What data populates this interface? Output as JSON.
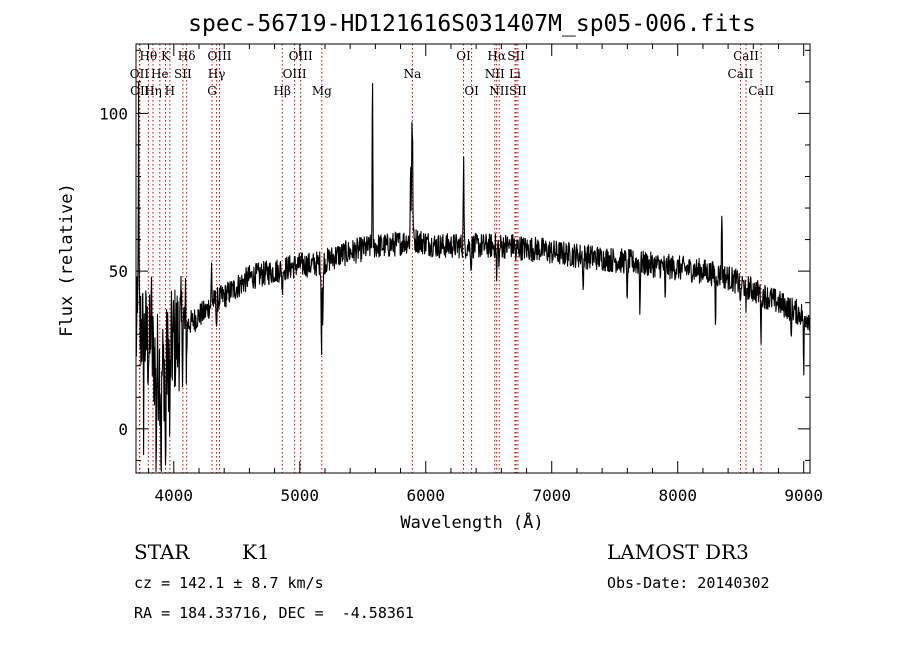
{
  "chart_data": {
    "type": "line",
    "title": "spec-56719-HD121616S031407M_sp05-006.fits",
    "xlabel": "Wavelength (Å)",
    "ylabel": "Flux (relative)",
    "xlim": [
      3700,
      9050
    ],
    "ylim": [
      -14,
      122
    ],
    "xticks": [
      4000,
      5000,
      6000,
      7000,
      8000,
      9000
    ],
    "yticks": [
      0,
      50,
      100
    ],
    "line_color": "#000000",
    "marker_color": "#d40000",
    "continuum": [
      [
        3700,
        30
      ],
      [
        3750,
        32
      ],
      [
        3800,
        26
      ],
      [
        3850,
        22
      ],
      [
        3900,
        18
      ],
      [
        3950,
        22
      ],
      [
        4000,
        28
      ],
      [
        4050,
        30
      ],
      [
        4100,
        33
      ],
      [
        4150,
        34
      ],
      [
        4200,
        36
      ],
      [
        4250,
        37
      ],
      [
        4300,
        40
      ],
      [
        4400,
        42
      ],
      [
        4500,
        45
      ],
      [
        4600,
        48
      ],
      [
        4700,
        49
      ],
      [
        4800,
        50
      ],
      [
        4900,
        51
      ],
      [
        5000,
        52
      ],
      [
        5100,
        52
      ],
      [
        5200,
        53
      ],
      [
        5300,
        55
      ],
      [
        5400,
        56
      ],
      [
        5500,
        57
      ],
      [
        5600,
        58
      ],
      [
        5700,
        58
      ],
      [
        5800,
        59
      ],
      [
        5900,
        60
      ],
      [
        6000,
        59
      ],
      [
        6100,
        58
      ],
      [
        6200,
        58
      ],
      [
        6300,
        58
      ],
      [
        6400,
        58
      ],
      [
        6500,
        58
      ],
      [
        6600,
        58
      ],
      [
        6700,
        58
      ],
      [
        6800,
        57
      ],
      [
        6900,
        57
      ],
      [
        7000,
        56
      ],
      [
        7200,
        55
      ],
      [
        7400,
        54
      ],
      [
        7600,
        53
      ],
      [
        7800,
        52
      ],
      [
        8000,
        51
      ],
      [
        8200,
        50
      ],
      [
        8400,
        48
      ],
      [
        8500,
        46
      ],
      [
        8600,
        44
      ],
      [
        8700,
        42
      ],
      [
        8800,
        40
      ],
      [
        8900,
        38
      ],
      [
        9000,
        36
      ],
      [
        9050,
        35
      ]
    ],
    "features": [
      {
        "x": 3720,
        "dy": 70
      },
      {
        "x": 3760,
        "dy": -25
      },
      {
        "x": 3820,
        "dy": 20
      },
      {
        "x": 3860,
        "dy": -30
      },
      {
        "x": 3900,
        "dy": -35
      },
      {
        "x": 3934,
        "dy": -38
      },
      {
        "x": 3969,
        "dy": -30
      },
      {
        "x": 4102,
        "dy": -10
      },
      {
        "x": 4300,
        "dy": 12
      },
      {
        "x": 4340,
        "dy": -8
      },
      {
        "x": 4861,
        "dy": -8
      },
      {
        "x": 5172,
        "dy": -28
      },
      {
        "x": 5183,
        "dy": -22
      },
      {
        "x": 5577,
        "dy": 52
      },
      {
        "x": 5880,
        "dy": 25
      },
      {
        "x": 5890,
        "dy": 37
      },
      {
        "x": 5896,
        "dy": 25
      },
      {
        "x": 6300,
        "dy": 14
      },
      {
        "x": 6300,
        "dy": 14
      },
      {
        "x": 6360,
        "dy": -8
      },
      {
        "x": 6563,
        "dy": -12
      },
      {
        "x": 6583,
        "dy": -6
      },
      {
        "x": 6717,
        "dy": -6
      },
      {
        "x": 7250,
        "dy": -12
      },
      {
        "x": 7600,
        "dy": -15
      },
      {
        "x": 7700,
        "dy": -14
      },
      {
        "x": 7900,
        "dy": -12
      },
      {
        "x": 8350,
        "dy": 22
      },
      {
        "x": 8300,
        "dy": -16
      },
      {
        "x": 8498,
        "dy": -8
      },
      {
        "x": 8542,
        "dy": -10
      },
      {
        "x": 8662,
        "dy": -14
      },
      {
        "x": 8900,
        "dy": -10
      },
      {
        "x": 9000,
        "dy": -20
      }
    ],
    "noise": {
      "seed": 12345,
      "blue_amplitude": 18,
      "blue_end": 4100,
      "red_amplitude": 4
    },
    "lines": [
      {
        "name": "Hθ",
        "x": 3798,
        "row": 0
      },
      {
        "name": "OII",
        "x": 3727,
        "row": 1
      },
      {
        "name": "OII",
        "x": 3730,
        "row": 2
      },
      {
        "name": "Hη",
        "x": 3835,
        "row": 2
      },
      {
        "name": "He",
        "x": 3889,
        "row": 1
      },
      {
        "name": "K",
        "x": 3934,
        "row": 0
      },
      {
        "name": "Hδ",
        "x": 4102,
        "row": 0
      },
      {
        "name": "H",
        "x": 3969,
        "row": 2
      },
      {
        "name": "SII",
        "x": 4072,
        "row": 1
      },
      {
        "name": "OIII",
        "x": 4363,
        "row": 0
      },
      {
        "name": "Hγ",
        "x": 4340,
        "row": 1
      },
      {
        "name": "G",
        "x": 4304,
        "row": 2
      },
      {
        "name": "Hβ",
        "x": 4861,
        "row": 2
      },
      {
        "name": "OIII",
        "x": 5007,
        "row": 0
      },
      {
        "name": "OIII",
        "x": 4959,
        "row": 1
      },
      {
        "name": "Mg",
        "x": 5175,
        "row": 2
      },
      {
        "name": "Na",
        "x": 5894,
        "row": 1
      },
      {
        "name": "OI",
        "x": 6300,
        "row": 0
      },
      {
        "name": "OI",
        "x": 6364,
        "row": 2
      },
      {
        "name": "Hα",
        "x": 6563,
        "row": 0
      },
      {
        "name": "NII",
        "x": 6548,
        "row": 1
      },
      {
        "name": "NII",
        "x": 6583,
        "row": 2
      },
      {
        "name": "SII",
        "x": 6717,
        "row": 0
      },
      {
        "name": "Li",
        "x": 6708,
        "row": 1
      },
      {
        "name": "SII",
        "x": 6731,
        "row": 2
      },
      {
        "name": "CaII",
        "x": 8542,
        "row": 0
      },
      {
        "name": "CaII",
        "x": 8498,
        "row": 1
      },
      {
        "name": "CaII",
        "x": 8662,
        "row": 2
      }
    ]
  },
  "info": {
    "object_class": "STAR",
    "subclass": "K1",
    "survey": "LAMOST DR3",
    "redshift": "cz = 142.1 ± 8.7 km/s",
    "obs_date": "Obs-Date: 20140302",
    "coordinates": "RA = 184.33716, DEC =  -4.58361"
  }
}
